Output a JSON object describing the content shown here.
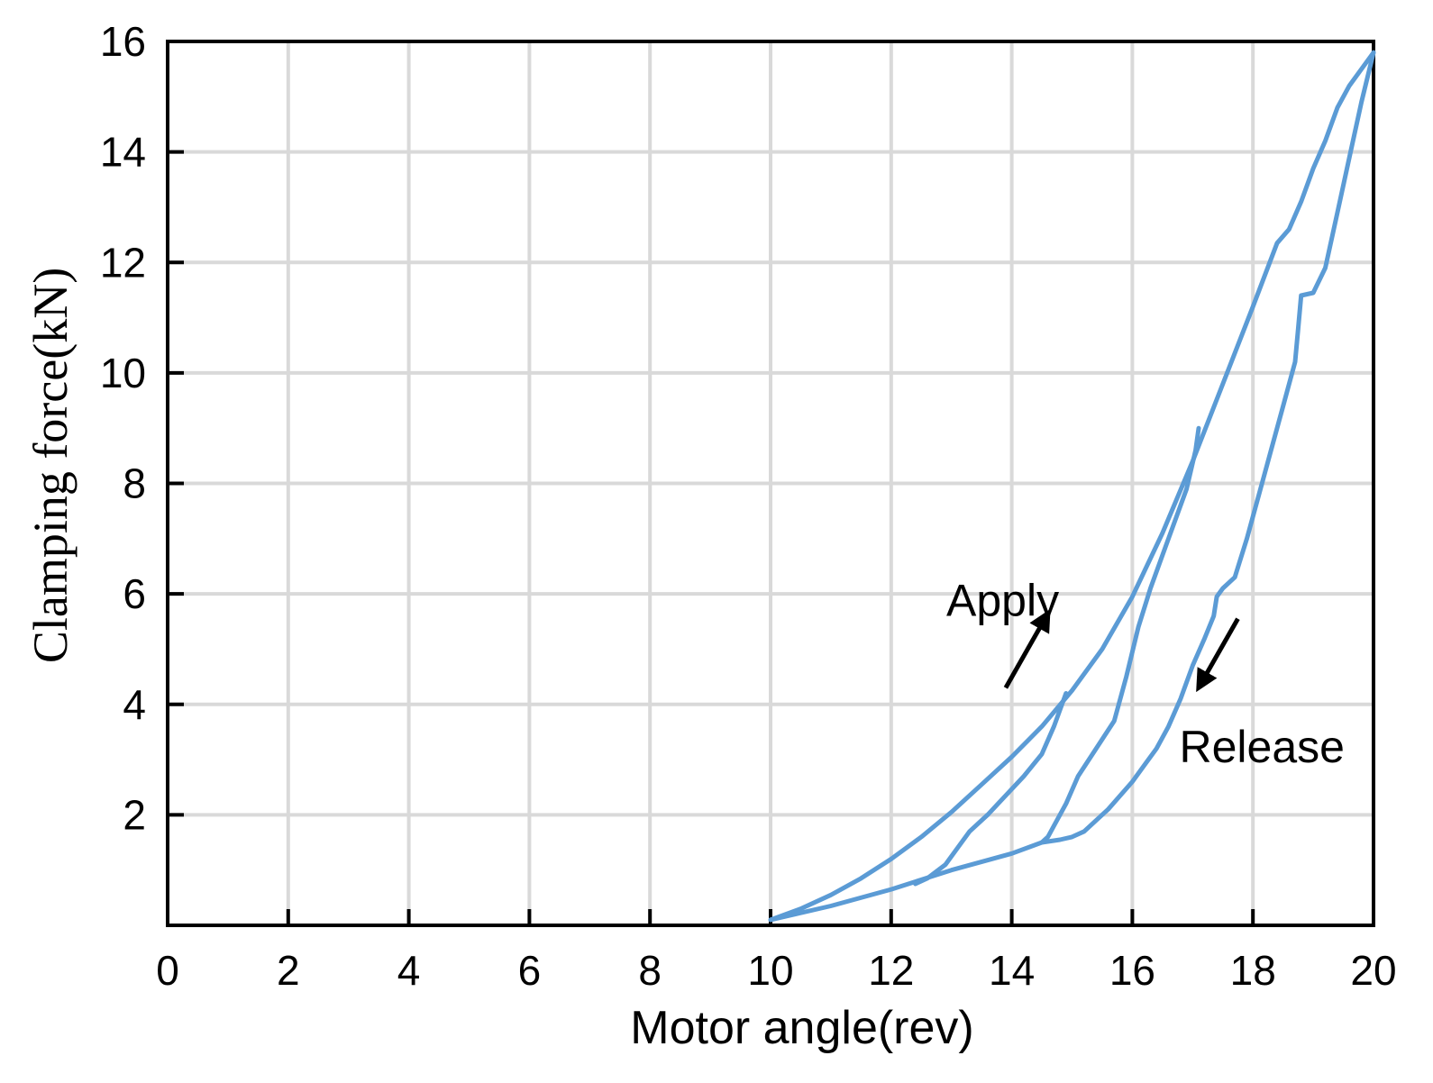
{
  "chart_data": {
    "type": "line",
    "title": "",
    "xlabel": "Motor angle(rev)",
    "ylabel": "Clamping force(kN)",
    "xlim": [
      0,
      20
    ],
    "ylim": [
      0,
      16
    ],
    "x_ticks": [
      0,
      2,
      4,
      6,
      8,
      10,
      12,
      14,
      16,
      18,
      20
    ],
    "x_tick_labels": [
      "0",
      "2",
      "4",
      "6",
      "8",
      "10",
      "12",
      "14",
      "16",
      "18",
      "20"
    ],
    "y_ticks": [
      2,
      4,
      6,
      8,
      10,
      12,
      14,
      16
    ],
    "y_tick_labels": [
      "2",
      "4",
      "6",
      "8",
      "10",
      "12",
      "14",
      "16"
    ],
    "grid": true,
    "line_color": "#5b9bd5",
    "grid_color": "#d9d9d9",
    "annotations": {
      "apply": {
        "label": "Apply",
        "direction": "up"
      },
      "release": {
        "label": "Release",
        "direction": "down"
      }
    },
    "series": [
      {
        "role": "apply",
        "x": [
          10.0,
          10.5,
          11.0,
          11.5,
          12.0,
          12.5,
          13.0,
          13.5,
          14.0,
          14.5,
          15.0,
          15.5,
          16.0,
          16.5,
          17.0,
          17.5,
          18.0,
          18.4,
          18.6,
          18.8,
          19.0,
          19.2,
          19.4,
          19.6,
          19.8,
          20.0
        ],
        "y": [
          0.1,
          0.3,
          0.55,
          0.85,
          1.2,
          1.6,
          2.05,
          2.55,
          3.05,
          3.6,
          4.25,
          5.0,
          5.95,
          7.1,
          8.4,
          9.8,
          11.2,
          12.35,
          12.6,
          13.1,
          13.7,
          14.2,
          14.8,
          15.2,
          15.5,
          15.8
        ]
      },
      {
        "role": "release-from-peak",
        "x": [
          20.0,
          19.8,
          19.6,
          19.4,
          19.2,
          19.0,
          18.8,
          18.75,
          18.7,
          18.5,
          18.3,
          18.1,
          17.9,
          17.7,
          17.5,
          17.4,
          17.35,
          17.2,
          17.0,
          16.8,
          16.6,
          16.4,
          16.0,
          15.6,
          15.2,
          15.0,
          14.8,
          14.5,
          14.0,
          13.0,
          12.0,
          11.0,
          10.0
        ],
        "y": [
          15.8,
          14.9,
          13.9,
          12.9,
          11.9,
          11.45,
          11.4,
          10.8,
          10.2,
          9.4,
          8.6,
          7.8,
          7.0,
          6.3,
          6.1,
          5.95,
          5.6,
          5.2,
          4.7,
          4.1,
          3.6,
          3.2,
          2.6,
          2.1,
          1.7,
          1.6,
          1.55,
          1.5,
          1.3,
          1.0,
          0.65,
          0.35,
          0.1
        ]
      },
      {
        "role": "partial-release-from-9kN",
        "x": [
          17.1,
          17.05,
          16.9,
          16.6,
          16.3,
          16.1,
          15.9,
          15.7,
          15.4,
          15.1,
          14.9,
          14.7,
          14.6,
          14.5
        ],
        "y": [
          9.0,
          8.6,
          7.9,
          7.0,
          6.1,
          5.4,
          4.5,
          3.7,
          3.2,
          2.7,
          2.2,
          1.8,
          1.6,
          1.5
        ]
      },
      {
        "role": "partial-release-from-4kN",
        "x": [
          14.9,
          14.7,
          14.5,
          14.2,
          13.9,
          13.6,
          13.3,
          13.1,
          12.9,
          12.6,
          12.4
        ],
        "y": [
          4.2,
          3.6,
          3.1,
          2.7,
          2.35,
          2.0,
          1.7,
          1.4,
          1.1,
          0.85,
          0.75
        ]
      }
    ]
  }
}
